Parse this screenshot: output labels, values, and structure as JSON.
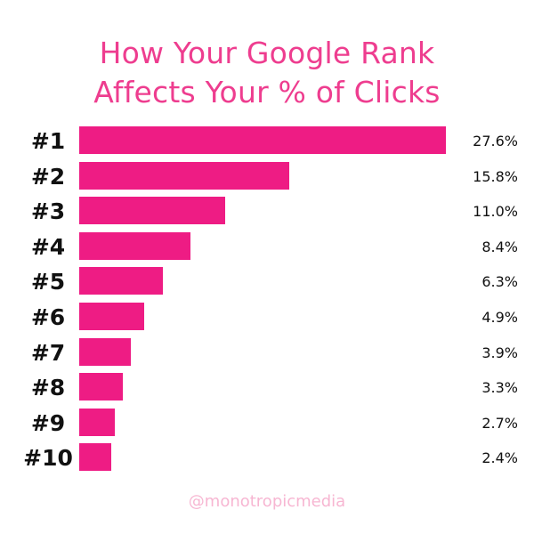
{
  "title_lines": [
    "How Your Google Rank",
    "Affects Your % of Clicks"
  ],
  "credit": "@monotropicmedia",
  "colors": {
    "bar": "#ee1c84",
    "title": "#ee3d8f",
    "text": "#111111",
    "credit": "#f7b6d2"
  },
  "chart_data": {
    "type": "bar",
    "orientation": "horizontal",
    "title": "How Your Google Rank Affects Your % of Clicks",
    "categories": [
      "#1",
      "#2",
      "#3",
      "#4",
      "#5",
      "#6",
      "#7",
      "#8",
      "#9",
      "#10"
    ],
    "values": [
      27.6,
      15.8,
      11.0,
      8.4,
      6.3,
      4.9,
      3.9,
      3.3,
      2.7,
      2.4
    ],
    "value_labels": [
      "27.6%",
      "15.8%",
      "11.0%",
      "8.4%",
      "6.3%",
      "4.9%",
      "3.9%",
      "3.3%",
      "2.7%",
      "2.4%"
    ],
    "unit": "%",
    "xlim": [
      0,
      27.6
    ],
    "grid": false,
    "legend": "none"
  }
}
